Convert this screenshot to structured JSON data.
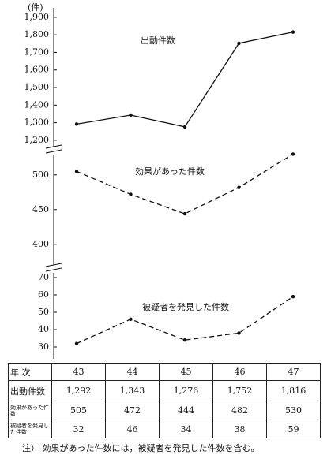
{
  "chart_data": [
    {
      "type": "line",
      "unit": "(件)",
      "label": "出動件数",
      "color": "#111",
      "dash": false,
      "values": [
        1292,
        1343,
        1276,
        1752,
        1816
      ],
      "ylim": [
        1150,
        1940
      ],
      "yticks": [
        {
          "value": 1200,
          "label": "1,200"
        },
        {
          "value": 1300,
          "label": "1,300"
        },
        {
          "value": 1400,
          "label": "1,400"
        },
        {
          "value": 1500,
          "label": "1,500"
        },
        {
          "value": 1600,
          "label": "1,600"
        },
        {
          "value": 1700,
          "label": "1,700"
        },
        {
          "value": 1800,
          "label": "1,800"
        },
        {
          "value": 1900,
          "label": "1,900"
        }
      ]
    },
    {
      "type": "line",
      "label": "効果があった件数",
      "color": "#111",
      "dash": true,
      "values": [
        505,
        472,
        444,
        482,
        530
      ],
      "ylim": [
        385,
        530
      ],
      "yticks": [
        400,
        450,
        500
      ]
    },
    {
      "type": "line",
      "label": "被疑者を発見した件数",
      "color": "#111",
      "dash": true,
      "values": [
        32,
        46,
        34,
        38,
        59
      ],
      "ylim": [
        25,
        75
      ],
      "yticks": [
        30,
        40,
        50,
        60,
        70
      ]
    }
  ],
  "table": {
    "header": [
      "年 次",
      "43",
      "44",
      "45",
      "46",
      "47"
    ],
    "rows": [
      [
        "出動件数",
        "1,292",
        "1,343",
        "1,276",
        "1,752",
        "1,816"
      ],
      [
        "効果があった件数",
        "505",
        "472",
        "444",
        "482",
        "530"
      ],
      [
        "被疑者を発見した件数",
        "32",
        "46",
        "34",
        "38",
        "59"
      ]
    ]
  },
  "note": "注） 効果があった件数には，被疑者を発見した件数を含む。"
}
